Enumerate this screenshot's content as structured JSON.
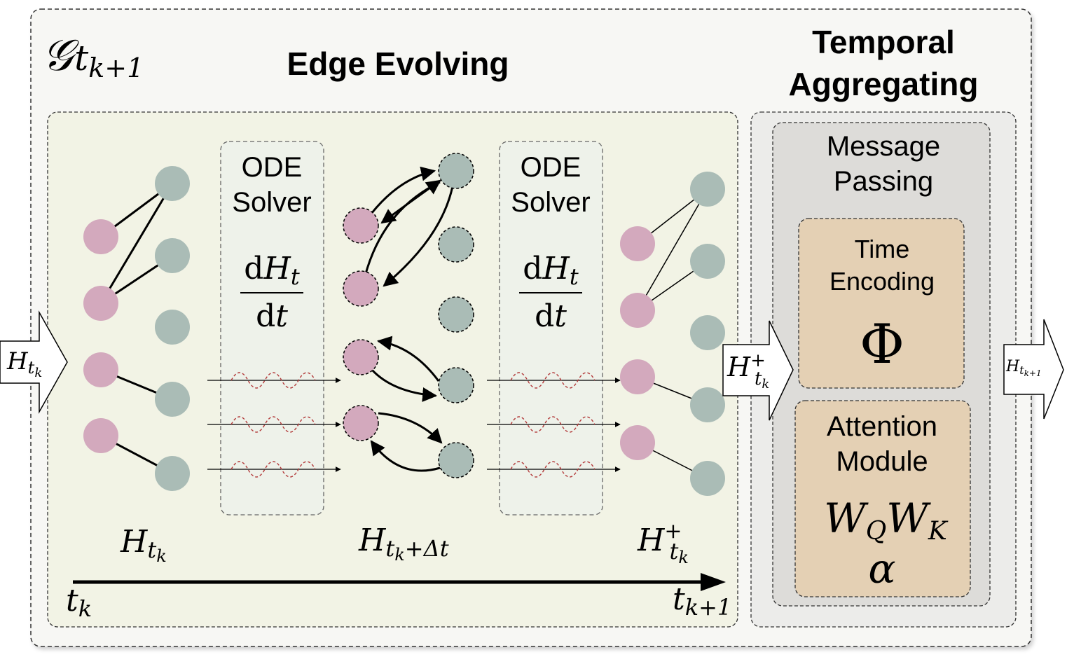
{
  "outer": {
    "graph_symbol": "𝒢",
    "graph_sub": "t",
    "graph_subsub": "k+1"
  },
  "edge_evolving": {
    "title": "Edge Evolving"
  },
  "temporal": {
    "title_line1": "Temporal",
    "title_line2": "Aggregating"
  },
  "ode1": {
    "line1": "ODE",
    "line2": "Solver",
    "num_d": "d",
    "num_var": "H",
    "num_sub": "t",
    "den_d": "d",
    "den_var": "t"
  },
  "ode2": {
    "line1": "ODE",
    "line2": "Solver",
    "num_d": "d",
    "num_var": "H",
    "num_sub": "t",
    "den_d": "d",
    "den_var": "t"
  },
  "labels": {
    "h_tk": {
      "var": "H",
      "sub": "t",
      "subsub": "k"
    },
    "h_tk_dt": {
      "var": "H",
      "sub": "t",
      "subsub": "k",
      "tail": "+Δt"
    },
    "h_tk_plus": {
      "var": "H",
      "sup": "+",
      "sub": "t",
      "subsub": "k"
    },
    "t_k": {
      "var": "t",
      "sub": "k"
    },
    "t_k1": {
      "var": "t",
      "sub": "k+1"
    }
  },
  "arrows": {
    "input": {
      "var": "H",
      "sub": "t",
      "subsub": "k"
    },
    "middle": {
      "var": "H",
      "sup": "+",
      "sub": "t",
      "subsub": "k"
    },
    "output": {
      "var": "H",
      "sub": "t",
      "subsub": "k+1"
    }
  },
  "message_passing": {
    "line1": "Message",
    "line2": "Passing"
  },
  "time_encoding": {
    "line1": "Time",
    "line2": "Encoding",
    "symbol": "Φ"
  },
  "attention": {
    "line1": "Attention",
    "line2": "Module",
    "w1": "W",
    "w1_sub": "Q",
    "w2": "W",
    "w2_sub": "K",
    "alpha": "α"
  },
  "colors": {
    "pink_node": "#d3a9bd",
    "green_node": "#aabcb6",
    "edge_bg": "#f2f3e5",
    "tan_box": "#e4d0b4",
    "gray_box": "#dddcd9",
    "outer_bg": "#f7f7f4",
    "wave": "#b23a3a"
  }
}
